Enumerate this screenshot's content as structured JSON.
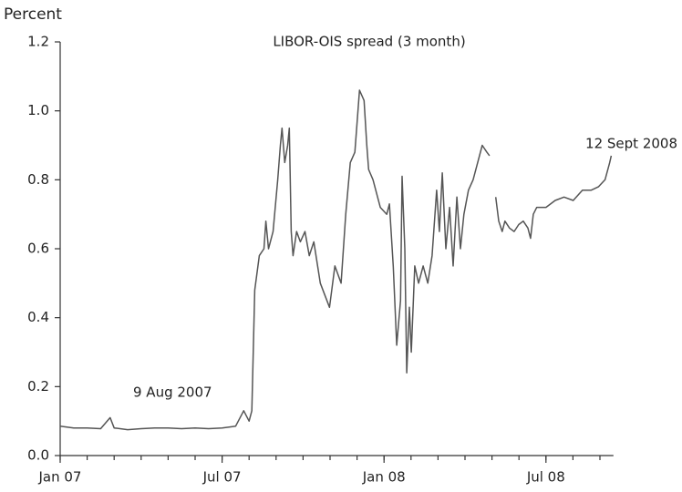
{
  "chart_data": {
    "type": "line",
    "title": "LIBOR-OIS spread (3 month)",
    "y_label": "Percent",
    "annotations": [
      "9 Aug 2007",
      "12 Sept 2008"
    ],
    "xlim": [
      0,
      20.5
    ],
    "xticks": [
      {
        "value": 0,
        "label": "Jan 07"
      },
      {
        "value": 6,
        "label": "Jul 07"
      },
      {
        "value": 12,
        "label": "Jan 08"
      },
      {
        "value": 18,
        "label": "Jul 08"
      }
    ],
    "ylim": [
      0,
      1.2
    ],
    "yticks": [
      {
        "value": 0,
        "label": "0.0"
      },
      0.2,
      0.4,
      0.6,
      0.8,
      {
        "value": 1,
        "label": "1.0"
      },
      1.2
    ],
    "grid": false,
    "series": [
      {
        "name": "LIBOR-OIS spread",
        "color": "#555555",
        "x": [
          0,
          0.5,
          1,
          1.5,
          1.85,
          2,
          2.5,
          3,
          3.5,
          4,
          4.5,
          5,
          5.5,
          6,
          6.5,
          6.8,
          7.0,
          7.1,
          7.21,
          7.38,
          7.55,
          7.62,
          7.72,
          7.89,
          8.06,
          8.16,
          8.22,
          8.32,
          8.43,
          8.49,
          8.56,
          8.63,
          8.76,
          8.9,
          9.07,
          9.23,
          9.4,
          9.64,
          9.98,
          10.18,
          10.41,
          10.58,
          10.75,
          10.92,
          11.09,
          11.26,
          11.36,
          11.43,
          11.59,
          11.86,
          12.1,
          12.2,
          12.34,
          12.47,
          12.61,
          12.67,
          12.77,
          12.84,
          12.94,
          13.01,
          13.14,
          13.28,
          13.45,
          13.62,
          13.78,
          13.95,
          14.05,
          14.16,
          14.29,
          14.43,
          14.56,
          14.7,
          14.83,
          14.96,
          15.13,
          15.3,
          15.47,
          15.64,
          15.81,
          15.91,
          15.98,
          16.14,
          16.25,
          16.38,
          16.48,
          16.65,
          16.82,
          16.99,
          17.16,
          17.33,
          17.43,
          17.53,
          17.66,
          18.0,
          18.34,
          18.67,
          19.01,
          19.35,
          19.68,
          19.95,
          20.19,
          20.36,
          20.42
        ],
        "values": [
          0.085,
          0.08,
          0.08,
          0.078,
          0.11,
          0.08,
          0.075,
          0.078,
          0.08,
          0.08,
          0.078,
          0.08,
          0.078,
          0.08,
          0.085,
          0.13,
          0.1,
          0.13,
          0.48,
          0.58,
          0.6,
          0.68,
          0.6,
          0.65,
          0.8,
          0.9,
          0.95,
          0.85,
          0.9,
          0.95,
          0.65,
          0.58,
          0.65,
          0.62,
          0.65,
          0.58,
          0.62,
          0.5,
          0.43,
          0.55,
          0.5,
          0.7,
          0.85,
          0.88,
          1.06,
          1.03,
          0.9,
          0.83,
          0.8,
          0.72,
          0.7,
          0.73,
          0.55,
          0.32,
          0.45,
          0.81,
          0.6,
          0.24,
          0.43,
          0.3,
          0.55,
          0.5,
          0.55,
          0.5,
          0.58,
          0.77,
          0.65,
          0.82,
          0.6,
          0.72,
          0.55,
          0.75,
          0.6,
          0.7,
          0.77,
          0.8,
          0.85,
          0.9,
          0.88,
          0.87,
          null,
          0.75,
          0.68,
          0.65,
          0.68,
          0.66,
          0.65,
          0.67,
          0.68,
          0.66,
          0.63,
          0.7,
          0.72,
          0.72,
          0.74,
          0.75,
          0.74,
          0.77,
          0.77,
          0.78,
          0.8,
          0.85,
          0.87
        ]
      }
    ]
  }
}
